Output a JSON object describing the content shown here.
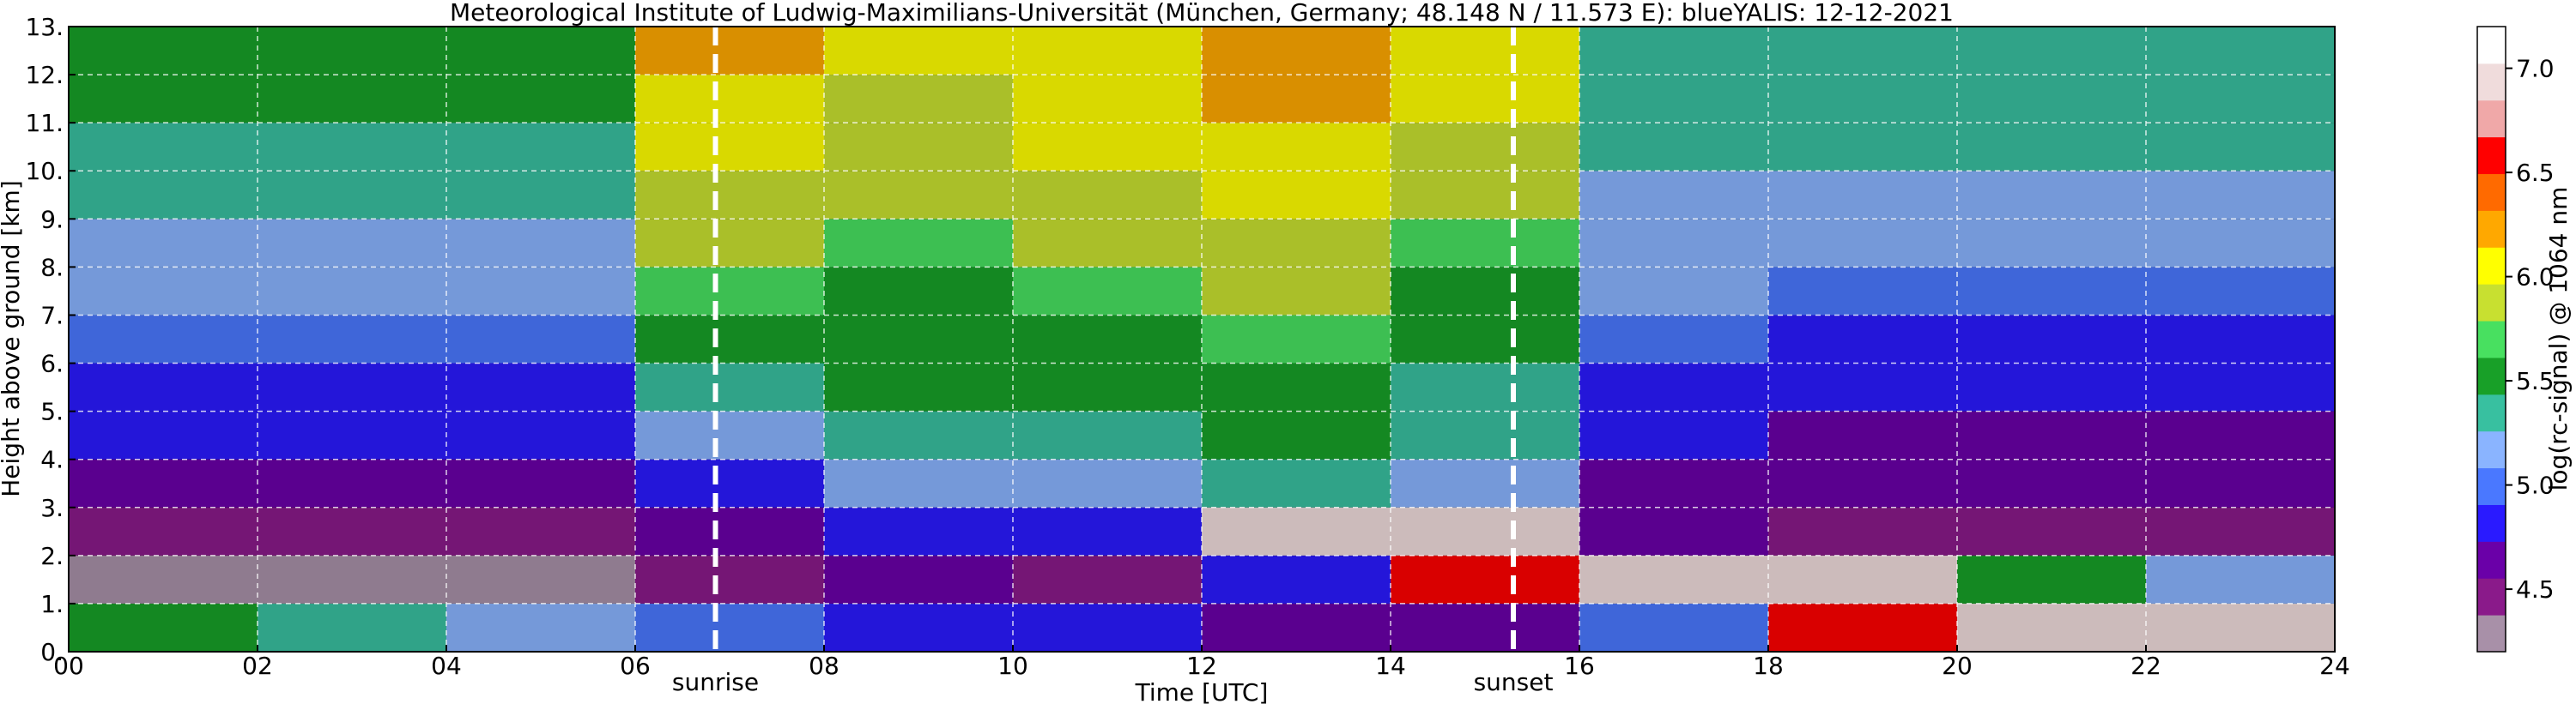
{
  "chart_data": {
    "type": "heatmap",
    "title": "Meteorological Institute of Ludwig-Maximilians-Universität (München, Germany; 48.148 N / 11.573 E):    blueYALIS: 12-12-2021",
    "x_label": "Time [UTC]",
    "y_label": "Height above ground [km]",
    "colorbar_label": "log(rc-signal) @ 1064 nm",
    "x_bins": [
      0,
      2,
      4,
      6,
      8,
      10,
      12,
      14,
      16,
      18,
      20,
      22,
      24
    ],
    "y_bins": [
      0,
      1,
      2,
      3,
      4,
      5,
      6,
      7,
      8,
      9,
      10,
      11,
      12,
      13
    ],
    "z": [
      [
        5.6,
        5.3,
        5.2,
        5.0,
        4.9,
        4.8,
        4.6,
        4.6,
        5.0,
        6.5,
        7.0,
        7.0
      ],
      [
        4.3,
        4.3,
        4.3,
        4.4,
        4.6,
        4.5,
        4.9,
        6.5,
        7.0,
        7.0,
        5.5,
        5.2
      ],
      [
        4.4,
        4.4,
        4.4,
        4.6,
        4.9,
        4.8,
        7.0,
        7.0,
        4.6,
        4.5,
        4.4,
        4.4
      ],
      [
        4.6,
        4.6,
        4.6,
        4.9,
        5.2,
        5.1,
        5.3,
        5.1,
        4.7,
        4.6,
        4.6,
        4.6
      ],
      [
        4.8,
        4.8,
        4.8,
        5.2,
        5.4,
        5.3,
        5.5,
        5.3,
        4.8,
        4.7,
        4.7,
        4.7
      ],
      [
        4.9,
        4.9,
        4.9,
        5.4,
        5.5,
        5.5,
        5.6,
        5.4,
        4.9,
        4.8,
        4.8,
        4.8
      ],
      [
        5.0,
        5.0,
        5.0,
        5.6,
        5.6,
        5.6,
        5.7,
        5.5,
        5.0,
        4.9,
        4.9,
        4.9
      ],
      [
        5.1,
        5.1,
        5.1,
        5.7,
        5.6,
        5.7,
        5.8,
        5.6,
        5.1,
        5.0,
        5.0,
        5.0
      ],
      [
        5.2,
        5.2,
        5.2,
        5.8,
        5.7,
        5.8,
        5.9,
        5.7,
        5.2,
        5.1,
        5.1,
        5.1
      ],
      [
        5.3,
        5.3,
        5.3,
        5.9,
        5.8,
        5.9,
        6.0,
        5.8,
        5.2,
        5.2,
        5.2,
        5.2
      ],
      [
        5.4,
        5.4,
        5.4,
        6.0,
        5.8,
        6.0,
        6.1,
        5.9,
        5.3,
        5.3,
        5.3,
        5.3
      ],
      [
        5.5,
        5.5,
        5.5,
        6.1,
        5.9,
        6.1,
        6.2,
        6.0,
        5.4,
        5.3,
        5.3,
        5.3
      ],
      [
        5.6,
        5.6,
        5.6,
        6.2,
        6.0,
        6.1,
        6.2,
        6.0,
        5.4,
        5.4,
        5.4,
        5.4
      ]
    ],
    "xlim": [
      0,
      24
    ],
    "xticks": [
      {
        "value": 0,
        "label": "00"
      },
      {
        "value": 2,
        "label": "02"
      },
      {
        "value": 4,
        "label": "04"
      },
      {
        "value": 6,
        "label": "06"
      },
      {
        "value": 8,
        "label": "08"
      },
      10,
      12,
      14,
      16,
      18,
      20,
      22,
      24
    ],
    "ylim": [
      0,
      13
    ],
    "yticks": [
      {
        "value": 0,
        "label": "0."
      },
      {
        "value": 1,
        "label": "1."
      },
      {
        "value": 2,
        "label": "2."
      },
      {
        "value": 3,
        "label": "3."
      },
      {
        "value": 4,
        "label": "4."
      },
      {
        "value": 5,
        "label": "5."
      },
      {
        "value": 6,
        "label": "6."
      },
      {
        "value": 7,
        "label": "7."
      },
      {
        "value": 8,
        "label": "8."
      },
      {
        "value": 9,
        "label": "9."
      },
      {
        "value": 10,
        "label": "10."
      },
      {
        "value": 11,
        "label": "11."
      },
      {
        "value": 12,
        "label": "12."
      },
      {
        "value": 13,
        "label": "13."
      }
    ],
    "clim": [
      4.2,
      7.2
    ],
    "cticks": [
      4.5,
      {
        "value": 5,
        "label": "5.0"
      },
      5.5,
      {
        "value": 6,
        "label": "6.0"
      },
      6.5,
      {
        "value": 7,
        "label": "7.0"
      }
    ],
    "colormap": [
      "#a890a8",
      "#8a1a8a",
      "#6a00a8",
      "#2a1aff",
      "#4a78ff",
      "#8ab4ff",
      "#38c0a0",
      "#18a028",
      "#48e060",
      "#c8e030",
      "#ffff00",
      "#ffa800",
      "#ff6a00",
      "#ff0000",
      "#f0a8a8",
      "#f0dcdc",
      "#ffffff"
    ],
    "background": "#000000",
    "grid": true,
    "annotations": [
      {
        "text": "sunrise",
        "x": 6.85
      },
      {
        "text": "sunset",
        "x": 15.3
      }
    ]
  }
}
